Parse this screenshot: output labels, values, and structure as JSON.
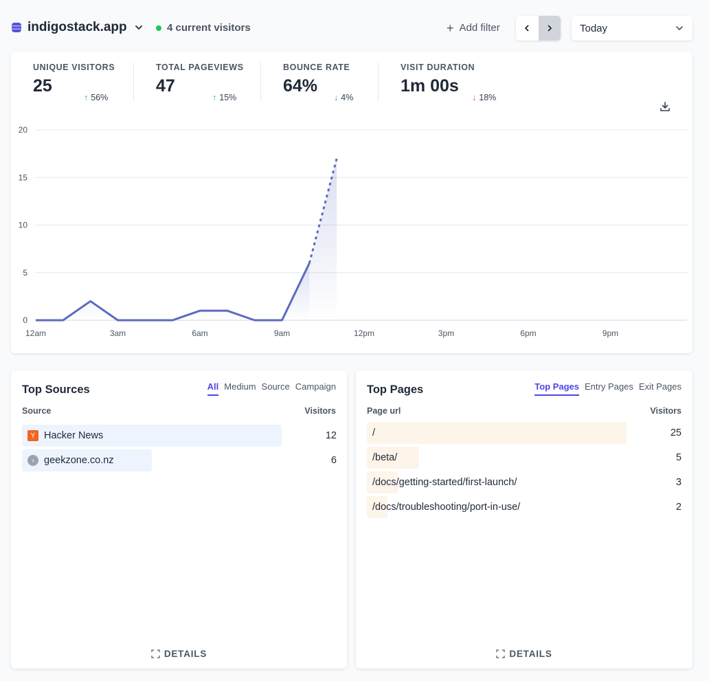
{
  "header": {
    "site_name": "indigostack.app",
    "current_visitors": "4 current visitors",
    "add_filter": "Add filter",
    "date_range": "Today"
  },
  "stats": [
    {
      "label": "UNIQUE VISITORS",
      "value": "25",
      "change": "56%",
      "direction": "up"
    },
    {
      "label": "TOTAL PAGEVIEWS",
      "value": "47",
      "change": "15%",
      "direction": "up"
    },
    {
      "label": "BOUNCE RATE",
      "value": "64%",
      "change": "4%",
      "direction": "down"
    },
    {
      "label": "VISIT DURATION",
      "value": "1m 00s",
      "change": "18%",
      "direction": "down"
    }
  ],
  "chart_data": {
    "type": "line",
    "x": [
      "12am",
      "1am",
      "2am",
      "3am",
      "4am",
      "5am",
      "6am",
      "7am",
      "8am",
      "9am",
      "10am",
      "11am"
    ],
    "series": [
      {
        "values": [
          0,
          0,
          2,
          0,
          0,
          0,
          1,
          1,
          0,
          0,
          6,
          17
        ]
      }
    ],
    "x_tick_labels": [
      "12am",
      "3am",
      "6am",
      "9am",
      "12pm",
      "3pm",
      "6pm",
      "9pm"
    ],
    "y_tick_labels": [
      "0",
      "5",
      "10",
      "15",
      "20"
    ],
    "ylim": [
      0,
      20
    ],
    "x_range_hours": [
      0,
      24
    ],
    "grid": true,
    "last_segment_dotted": true,
    "colors": {
      "line": "#5b6bbf",
      "grid": "#e5e7eb"
    }
  },
  "top_sources": {
    "title": "Top Sources",
    "tabs": [
      "All",
      "Medium",
      "Source",
      "Campaign"
    ],
    "active_tab": "All",
    "col_source": "Source",
    "col_visitors": "Visitors",
    "rows": [
      {
        "label": "Hacker News",
        "value": "12",
        "icon": "hacker-news-icon"
      },
      {
        "label": "geekzone.co.nz",
        "value": "6",
        "icon": "globe-icon"
      }
    ],
    "details": "DETAILS"
  },
  "top_pages": {
    "title": "Top Pages",
    "tabs": [
      "Top Pages",
      "Entry Pages",
      "Exit Pages"
    ],
    "active_tab": "Top Pages",
    "col_page": "Page url",
    "col_visitors": "Visitors",
    "rows": [
      {
        "label": "/",
        "value": "25"
      },
      {
        "label": "/beta/",
        "value": "5"
      },
      {
        "label": "/docs/getting-started/first-launch/",
        "value": "3"
      },
      {
        "label": "/docs/troubleshooting/port-in-use/",
        "value": "2"
      }
    ],
    "details": "DETAILS"
  }
}
